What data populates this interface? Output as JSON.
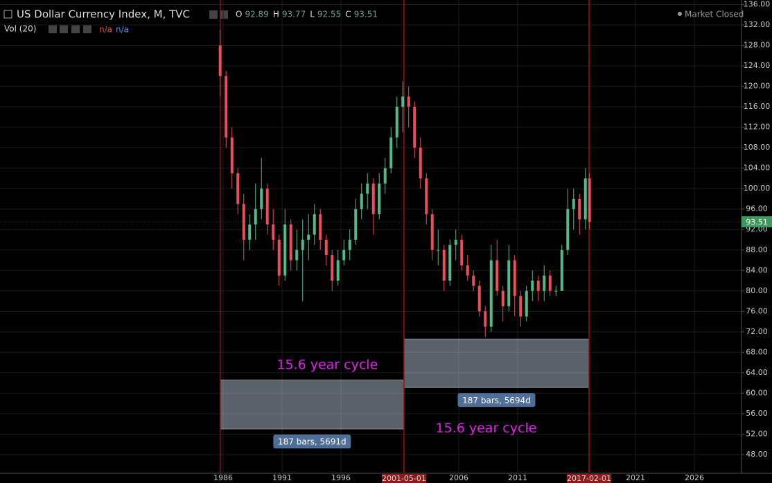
{
  "chart_data": {
    "type": "candlestick",
    "title": "US Dollar Currency Index, M, TVC",
    "ohlc_legend": [
      {
        "label": "O",
        "value": 92.89
      },
      {
        "label": "H",
        "value": 93.77
      },
      {
        "label": "L",
        "value": 92.55
      },
      {
        "label": "C",
        "value": 93.51
      }
    ],
    "indicator": {
      "name": "Vol (20)",
      "values": [
        "n/a",
        "n/a"
      ]
    },
    "status": "Market Closed",
    "last_price": 93.51,
    "up_color": "#53b987",
    "down_color": "#eb4d5c",
    "x": [
      1985.75,
      1986.25,
      1986.75,
      1987.25,
      1987.75,
      1988.25,
      1988.75,
      1989.25,
      1989.75,
      1990.25,
      1990.75,
      1991.25,
      1991.75,
      1992.25,
      1992.75,
      1993.25,
      1993.75,
      1994.25,
      1994.75,
      1995.25,
      1995.75,
      1996.25,
      1996.75,
      1997.25,
      1997.75,
      1998.25,
      1998.75,
      1999.25,
      1999.75,
      2000.25,
      2000.75,
      2001.25,
      2001.75,
      2002.25,
      2002.75,
      2003.25,
      2003.75,
      2004.25,
      2004.75,
      2005.25,
      2005.75,
      2006.25,
      2006.75,
      2007.25,
      2007.75,
      2008.25,
      2008.75,
      2009.25,
      2009.75,
      2010.25,
      2010.75,
      2011.25,
      2011.75,
      2012.25,
      2012.75,
      2013.25,
      2013.75,
      2014.25,
      2014.75,
      2015.25,
      2015.75,
      2016.25,
      2016.75,
      2017.1
    ],
    "open": [
      128,
      122,
      110,
      103,
      97,
      90,
      93,
      96,
      100,
      93,
      90,
      83,
      93,
      86,
      88,
      90,
      91,
      95,
      90,
      87,
      82,
      86,
      88,
      90,
      96,
      99,
      101,
      95,
      101,
      104,
      110,
      116,
      118,
      116,
      108,
      102,
      95,
      88,
      88,
      82,
      89,
      90,
      85,
      83,
      81,
      76,
      73,
      86,
      80,
      77,
      86,
      79,
      75,
      80,
      82,
      80,
      83,
      80,
      80,
      88,
      96,
      98,
      94,
      102
    ],
    "high": [
      131,
      123,
      112,
      104,
      99,
      95,
      101,
      106,
      101,
      96,
      91,
      96,
      94,
      92,
      94,
      95,
      97,
      96,
      91,
      88,
      88,
      90,
      92,
      98,
      101,
      103,
      102,
      103,
      106,
      112,
      118,
      121,
      120,
      117,
      110,
      103,
      96,
      92,
      89,
      90,
      92,
      91,
      87,
      84,
      82,
      77,
      89,
      90,
      81,
      89,
      87,
      80,
      81,
      84,
      83,
      85,
      84,
      81,
      89,
      100,
      100,
      99,
      104,
      103
    ],
    "low": [
      118,
      108,
      100,
      95,
      86,
      88,
      90,
      94,
      91,
      88,
      81,
      82,
      84,
      84,
      78,
      86,
      89,
      88,
      85,
      80,
      81,
      85,
      86,
      89,
      94,
      96,
      91,
      94,
      99,
      103,
      108,
      111,
      112,
      106,
      100,
      93,
      86,
      85,
      80,
      81,
      86,
      84,
      82,
      80,
      75,
      71,
      72,
      79,
      74,
      76,
      75,
      73,
      74,
      78,
      78,
      78,
      79,
      79,
      80,
      87,
      92,
      91,
      92,
      92
    ],
    "close": [
      122,
      110,
      103,
      97,
      90,
      93,
      96,
      100,
      93,
      90,
      83,
      93,
      86,
      88,
      90,
      91,
      95,
      90,
      87,
      82,
      86,
      88,
      90,
      96,
      99,
      101,
      95,
      101,
      104,
      110,
      116,
      118,
      116,
      108,
      102,
      95,
      88,
      88,
      82,
      89,
      90,
      85,
      83,
      81,
      76,
      73,
      86,
      80,
      77,
      86,
      79,
      75,
      80,
      82,
      80,
      83,
      80,
      80,
      88,
      96,
      98,
      94,
      102,
      93.51
    ],
    "xlim": [
      1967.06,
      2030.0
    ],
    "ylim": [
      44.34,
      136.88
    ],
    "xticks": [
      1986,
      1991,
      1996,
      2006,
      2011,
      2021,
      2026
    ],
    "yticks": [
      {
        "value": 48,
        "label": "48.00"
      },
      {
        "value": 52,
        "label": "52.00"
      },
      {
        "value": 56,
        "label": "56.00"
      },
      {
        "value": 60,
        "label": "60.00"
      },
      {
        "value": 64,
        "label": "64.00"
      },
      {
        "value": 68,
        "label": "68.00"
      },
      {
        "value": 72,
        "label": "72.00"
      },
      {
        "value": 76,
        "label": "76.00"
      },
      {
        "value": 80,
        "label": "80.00"
      },
      {
        "value": 84,
        "label": "84.00"
      },
      {
        "value": 88,
        "label": "88.00"
      },
      {
        "value": 92,
        "label": "92.00"
      },
      {
        "value": 96,
        "label": "96.00"
      },
      {
        "value": 100,
        "label": "100.00"
      },
      {
        "value": 104,
        "label": "104.00"
      },
      {
        "value": 108,
        "label": "108.00"
      },
      {
        "value": 112,
        "label": "112.00"
      },
      {
        "value": 116,
        "label": "116.00"
      },
      {
        "value": 120,
        "label": "120.00"
      },
      {
        "value": 124,
        "label": "124.00"
      },
      {
        "value": 128,
        "label": "128.00"
      },
      {
        "value": 132,
        "label": "132.00"
      },
      {
        "value": 136,
        "label": "136.00"
      }
    ],
    "grid": true,
    "vlines": [
      {
        "x": 1985.75
      },
      {
        "x": 2001.35,
        "label": "2001-05-01"
      },
      {
        "x": 2017.06,
        "label": "2017-02-01"
      }
    ],
    "ranges": [
      {
        "x": [
          1985.75,
          2001.35
        ],
        "y": [
          53.0,
          62.6
        ],
        "label": "187 bars, 5691d",
        "cycle": "15.6 year cycle"
      },
      {
        "x": [
          2001.35,
          2017.06
        ],
        "y": [
          61.1,
          70.6
        ],
        "label": "187 bars, 5694d",
        "cycle": "15.6 year cycle"
      }
    ]
  }
}
